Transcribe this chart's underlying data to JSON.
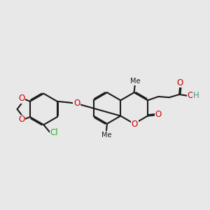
{
  "bg": "#e8e8e8",
  "bc": "#1c1c1c",
  "lw": 1.5,
  "dbo": 0.05,
  "fs": 8.5,
  "colors": {
    "O": "#cc0000",
    "Cl": "#22aa22",
    "H": "#4a9999",
    "C": "#1c1c1c"
  },
  "xlim": [
    0.0,
    10.0
  ],
  "ylim": [
    1.0,
    5.5
  ]
}
